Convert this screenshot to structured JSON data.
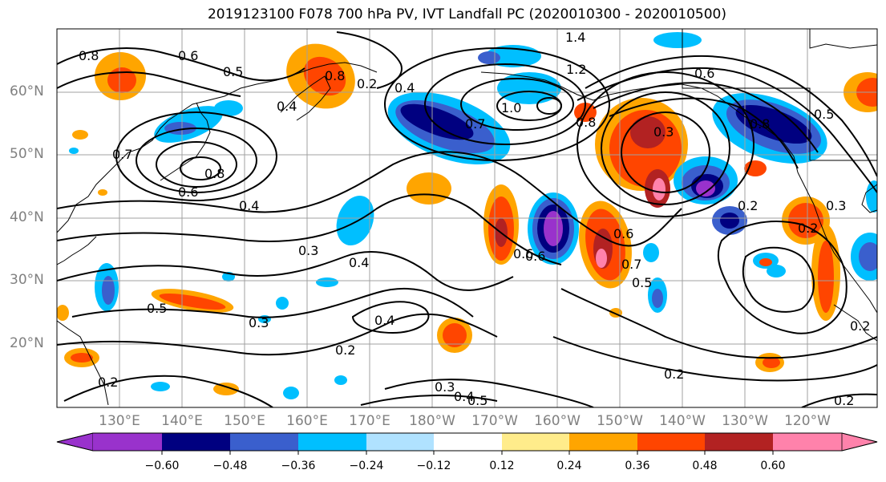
{
  "title": "2019123100 F078 700 hPa PV, IVT Landfall PC (2020010300 - 2020010500)",
  "lat_labels": [
    "60°N",
    "50°N",
    "40°N",
    "30°N",
    "20°N"
  ],
  "lon_labels": [
    "130°E",
    "140°E",
    "150°E",
    "160°E",
    "170°E",
    "180°W",
    "170°W",
    "160°W",
    "150°W",
    "140°W",
    "130°W",
    "120°W"
  ],
  "colorbar": {
    "tick_labels": [
      "−0.60",
      "−0.48",
      "−0.36",
      "−0.24",
      "−0.12",
      "0.12",
      "0.24",
      "0.36",
      "0.48",
      "0.60"
    ],
    "colors": [
      "#9932cc",
      "#000080",
      "#3a5fcd",
      "#00bfff",
      "#b0e2ff",
      "#ffffff",
      "#ffec8b",
      "#ffa500",
      "#ff4500",
      "#b22222",
      "#ff82ab"
    ]
  },
  "contour_labels": [
    "0.8",
    "0.6",
    "0.5",
    "0.8",
    "0.2",
    "0.4",
    "1.2",
    "1.4",
    "0.6",
    "0.7",
    "1.0",
    "0.8",
    "0.3",
    "0.8",
    "0.5",
    "0.4",
    "0.7",
    "0.6",
    "0.8",
    "0.6",
    "0.4",
    "0.3",
    "0.4",
    "0.5",
    "0.3",
    "0.4",
    "0.2",
    "0.6",
    "0.6",
    "0.7",
    "0.5",
    "0.2",
    "0.2",
    "0.2",
    "0.3",
    "0.4",
    "0.5",
    "0.2",
    "0.2",
    "0.3",
    "0.2"
  ]
}
